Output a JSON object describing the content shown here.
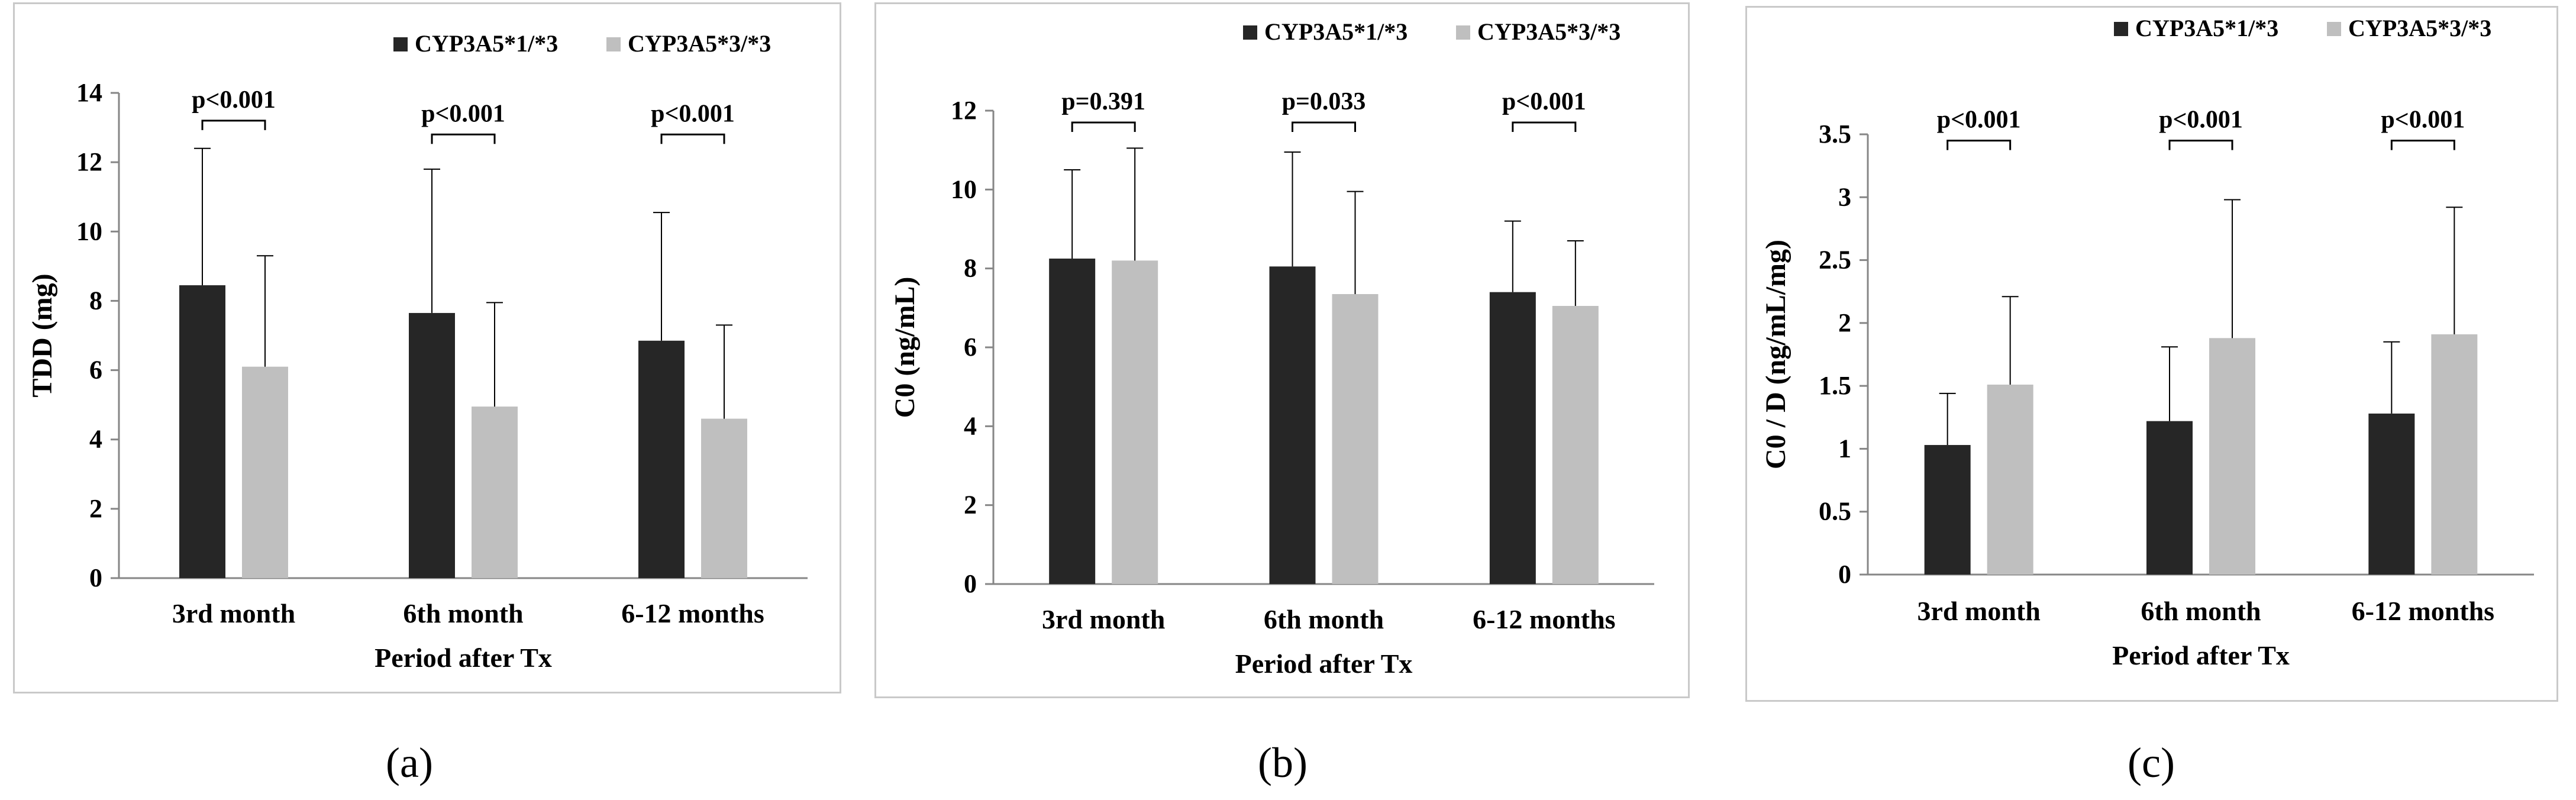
{
  "colors": {
    "series1": "#262626",
    "series2": "#bfbfbf",
    "axis": "#868686",
    "text": "#000000"
  },
  "chart_data": [
    {
      "panel_label": "(a)",
      "type": "bar",
      "xlabel": "Period after Tx",
      "ylabel": "TDD (mg)",
      "ylim": [
        0,
        14
      ],
      "yticks": [
        "0",
        "2",
        "4",
        "6",
        "8",
        "10",
        "12",
        "14"
      ],
      "grid": false,
      "legend_position": "top-right",
      "categories": [
        "3rd month",
        "6th month",
        "6-12 months"
      ],
      "series": [
        {
          "name": "CYP3A5*1/*3",
          "values": [
            8.45,
            7.65,
            6.85
          ],
          "error_upper": [
            12.4,
            11.8,
            10.55
          ]
        },
        {
          "name": "CYP3A5*3/*3",
          "values": [
            6.1,
            4.95,
            4.6
          ],
          "error_upper": [
            9.3,
            7.95,
            7.3
          ]
        }
      ],
      "annotations": [
        {
          "category": "3rd month",
          "text": "p<0.001",
          "at": 13.2
        },
        {
          "category": "6th month",
          "text": "p<0.001",
          "at": 12.8
        },
        {
          "category": "6-12 months",
          "text": "p<0.001",
          "at": 12.8
        }
      ]
    },
    {
      "panel_label": "(b)",
      "type": "bar",
      "xlabel": "Period after Tx",
      "ylabel": "C0 (ng/mL)",
      "ylim": [
        0,
        12
      ],
      "yticks": [
        "0",
        "2",
        "4",
        "6",
        "8",
        "10",
        "12"
      ],
      "grid": false,
      "legend_position": "top-right",
      "categories": [
        "3rd month",
        "6th month",
        "6-12 months"
      ],
      "series": [
        {
          "name": "CYP3A5*1/*3",
          "values": [
            8.25,
            8.05,
            7.4
          ],
          "error_upper": [
            10.5,
            10.95,
            9.2
          ]
        },
        {
          "name": "CYP3A5*3/*3",
          "values": [
            8.2,
            7.35,
            7.05
          ],
          "error_upper": [
            11.05,
            9.95,
            8.7
          ]
        }
      ],
      "annotations": [
        {
          "category": "3rd month",
          "text": "p=0.391",
          "at": 11.7
        },
        {
          "category": "6th month",
          "text": "p=0.033",
          "at": 11.7
        },
        {
          "category": "6-12 months",
          "text": "p<0.001",
          "at": 11.7
        }
      ]
    },
    {
      "panel_label": "(c)",
      "type": "bar",
      "xlabel": "Period after Tx",
      "ylabel": "C0 / D (ng/mL/mg)",
      "ylim": [
        0,
        3.5
      ],
      "yticks": [
        "0",
        "0.5",
        "1",
        "1.5",
        "2",
        "2.5",
        "3",
        "3.5"
      ],
      "grid": false,
      "legend_position": "top-right",
      "categories": [
        "3rd month",
        "6th month",
        "6-12 months"
      ],
      "series": [
        {
          "name": "CYP3A5*1/*3",
          "values": [
            1.03,
            1.22,
            1.28
          ],
          "error_upper": [
            1.44,
            1.81,
            1.85
          ]
        },
        {
          "name": "CYP3A5*3/*3",
          "values": [
            1.51,
            1.88,
            1.91
          ],
          "error_upper": [
            2.21,
            2.98,
            2.92
          ]
        }
      ],
      "annotations": [
        {
          "category": "3rd month",
          "text": "p<0.001",
          "at": 3.45
        },
        {
          "category": "6th month",
          "text": "p<0.001",
          "at": 3.45
        },
        {
          "category": "6-12 months",
          "text": "p<0.001",
          "at": 3.45
        }
      ]
    }
  ]
}
